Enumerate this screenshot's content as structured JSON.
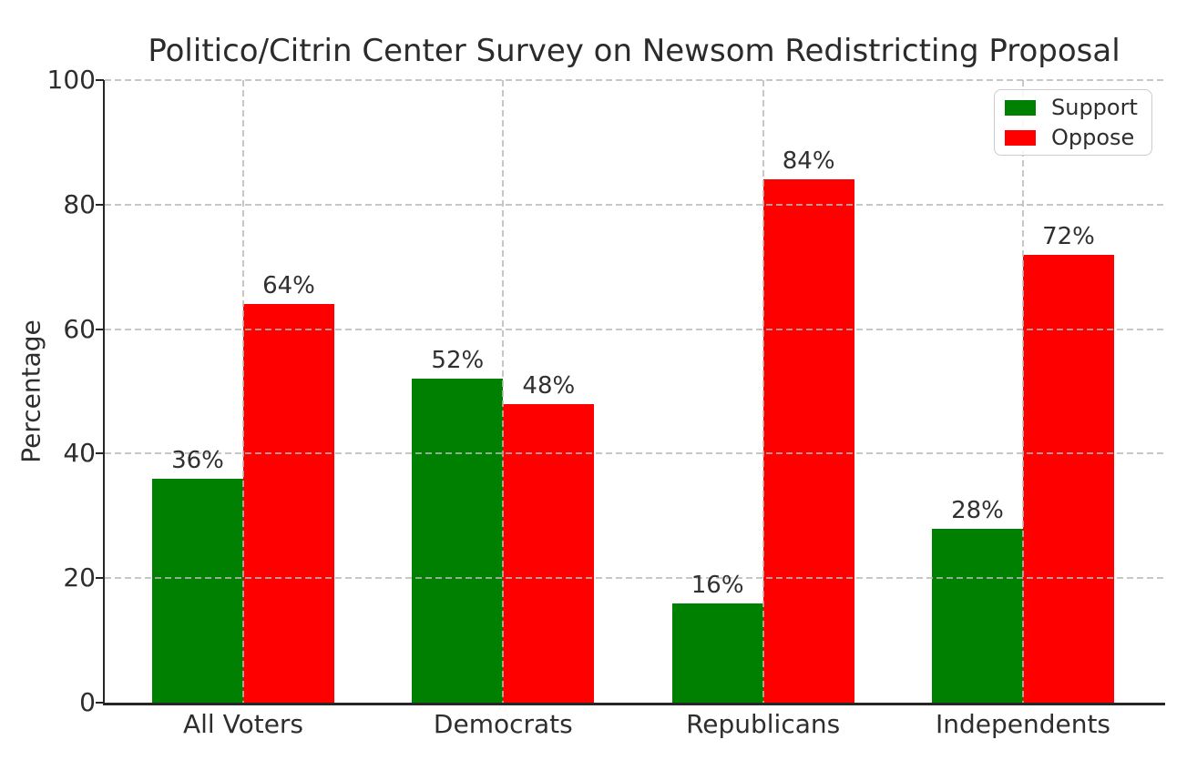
{
  "chart_data": {
    "type": "bar",
    "title": "Politico/Citrin Center Survey on Newsom Redistricting Proposal",
    "xlabel": "",
    "ylabel": "Percentage",
    "categories": [
      "All Voters",
      "Democrats",
      "Republicans",
      "Independents"
    ],
    "series": [
      {
        "name": "Support",
        "color": "#008000",
        "values": [
          36,
          52,
          16,
          28
        ],
        "value_labels": [
          "36%",
          "52%",
          "16%",
          "28%"
        ]
      },
      {
        "name": "Oppose",
        "color": "#ff0000",
        "values": [
          64,
          48,
          84,
          72
        ],
        "value_labels": [
          "64%",
          "48%",
          "84%",
          "72%"
        ]
      }
    ],
    "ylim": [
      0,
      100
    ],
    "yticks": [
      "0",
      "20",
      "40",
      "60",
      "80",
      "100"
    ],
    "grid": {
      "style": "dashed",
      "horizontal": true,
      "vertical": true,
      "drawn_above_bars": true,
      "color": "#bfbfbf"
    },
    "legend": {
      "position": "upper right",
      "entries": [
        "Support",
        "Oppose"
      ]
    }
  },
  "colors": {
    "background": "#ffffff",
    "axis": "#262626",
    "text": "#2e2e2e"
  }
}
